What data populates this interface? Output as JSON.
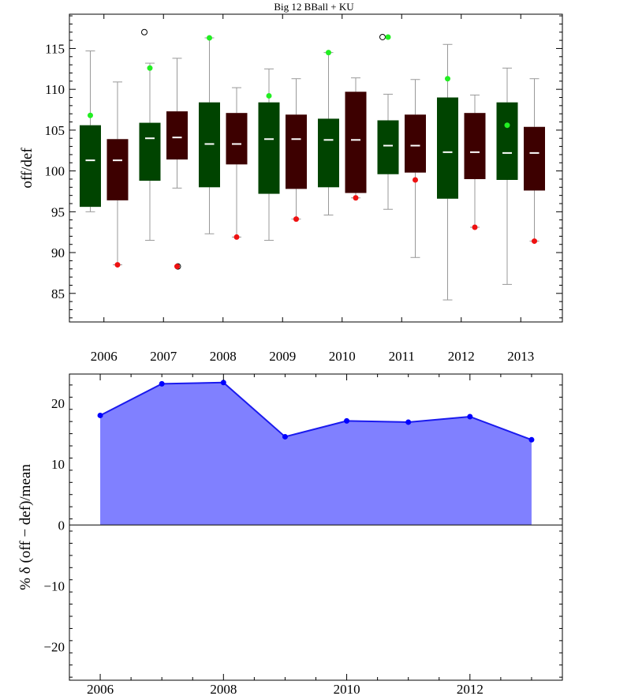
{
  "chart_data": [
    {
      "type": "boxplot",
      "title": "Big 12 BBall + KU",
      "ylabel": "off/def",
      "xlabel": "",
      "ylim": [
        81.5,
        119.2
      ],
      "yticks": [
        85,
        90,
        95,
        100,
        105,
        110,
        115
      ],
      "categories": [
        "2006",
        "2007",
        "2008",
        "2009",
        "2010",
        "2011",
        "2012",
        "2013"
      ],
      "colors": {
        "off": "#004400",
        "def": "#3d0000",
        "ku_off": "#22ee22",
        "ku_def": "#ee1111",
        "whisker": "#999999",
        "median": "#ffffff"
      },
      "series": [
        {
          "name": "off",
          "boxes": [
            {
              "whisker_low": 95.0,
              "q1": 95.6,
              "median": 101.3,
              "q3": 105.6,
              "whisker_high": 114.7,
              "ku": 106.8,
              "outliers": []
            },
            {
              "whisker_low": 91.5,
              "q1": 98.8,
              "median": 104.0,
              "q3": 105.9,
              "whisker_high": 113.2,
              "ku": 112.6,
              "outliers": [
                117.0
              ]
            },
            {
              "whisker_low": 92.3,
              "q1": 98.0,
              "median": 103.3,
              "q3": 108.4,
              "whisker_high": 116.3,
              "ku": 116.3,
              "outliers": []
            },
            {
              "whisker_low": 91.5,
              "q1": 97.2,
              "median": 103.9,
              "q3": 108.4,
              "whisker_high": 112.5,
              "ku": 109.2,
              "outliers": []
            },
            {
              "whisker_low": 94.6,
              "q1": 98.0,
              "median": 103.8,
              "q3": 106.4,
              "whisker_high": 114.5,
              "ku": 114.5,
              "outliers": []
            },
            {
              "whisker_low": 95.3,
              "q1": 99.6,
              "median": 103.1,
              "q3": 106.2,
              "whisker_high": 109.4,
              "ku": 116.4,
              "outliers": [
                116.4
              ]
            },
            {
              "whisker_low": 84.2,
              "q1": 96.6,
              "median": 102.3,
              "q3": 109.0,
              "whisker_high": 115.5,
              "ku": 111.3,
              "outliers": []
            },
            {
              "whisker_low": 86.1,
              "q1": 98.9,
              "median": 102.2,
              "q3": 108.4,
              "whisker_high": 112.6,
              "ku": 105.6,
              "outliers": []
            }
          ]
        },
        {
          "name": "def",
          "boxes": [
            {
              "whisker_low": 88.5,
              "q1": 96.4,
              "median": 101.3,
              "q3": 103.9,
              "whisker_high": 110.9,
              "ku": 88.5,
              "outliers": []
            },
            {
              "whisker_low": 97.9,
              "q1": 101.4,
              "median": 104.1,
              "q3": 107.3,
              "whisker_high": 113.8,
              "ku": 88.3,
              "outliers": [
                88.3
              ]
            },
            {
              "whisker_low": 91.9,
              "q1": 100.8,
              "median": 103.3,
              "q3": 107.1,
              "whisker_high": 110.2,
              "ku": 91.9,
              "outliers": []
            },
            {
              "whisker_low": 94.1,
              "q1": 97.8,
              "median": 103.9,
              "q3": 106.9,
              "whisker_high": 111.3,
              "ku": 94.1,
              "outliers": []
            },
            {
              "whisker_low": 96.7,
              "q1": 97.3,
              "median": 103.8,
              "q3": 109.7,
              "whisker_high": 111.4,
              "ku": 96.7,
              "outliers": []
            },
            {
              "whisker_low": 89.4,
              "q1": 99.8,
              "median": 103.1,
              "q3": 106.9,
              "whisker_high": 111.2,
              "ku": 98.9,
              "outliers": []
            },
            {
              "whisker_low": 93.1,
              "q1": 99.0,
              "median": 102.3,
              "q3": 107.1,
              "whisker_high": 109.3,
              "ku": 93.1,
              "outliers": []
            },
            {
              "whisker_low": 91.4,
              "q1": 97.6,
              "median": 102.2,
              "q3": 105.4,
              "whisker_high": 111.3,
              "ku": 91.4,
              "outliers": []
            }
          ]
        }
      ]
    },
    {
      "type": "area",
      "title": "",
      "ylabel": "% δ (off − def)/mean",
      "xlabel": "",
      "xlim": [
        2005.5,
        2013.5
      ],
      "ylim": [
        -25.5,
        24.8
      ],
      "xticks": [
        2006,
        2008,
        2010,
        2012
      ],
      "yticks": [
        -20,
        -10,
        0,
        10,
        20
      ],
      "colors": {
        "fill": "#8080ff",
        "line": "#1a1aee",
        "point": "#0000ff"
      },
      "x": [
        2006,
        2007,
        2008,
        2009,
        2010,
        2011,
        2012,
        2013
      ],
      "values": [
        18.0,
        23.2,
        23.4,
        14.5,
        17.1,
        16.9,
        17.8,
        14.0
      ]
    }
  ]
}
